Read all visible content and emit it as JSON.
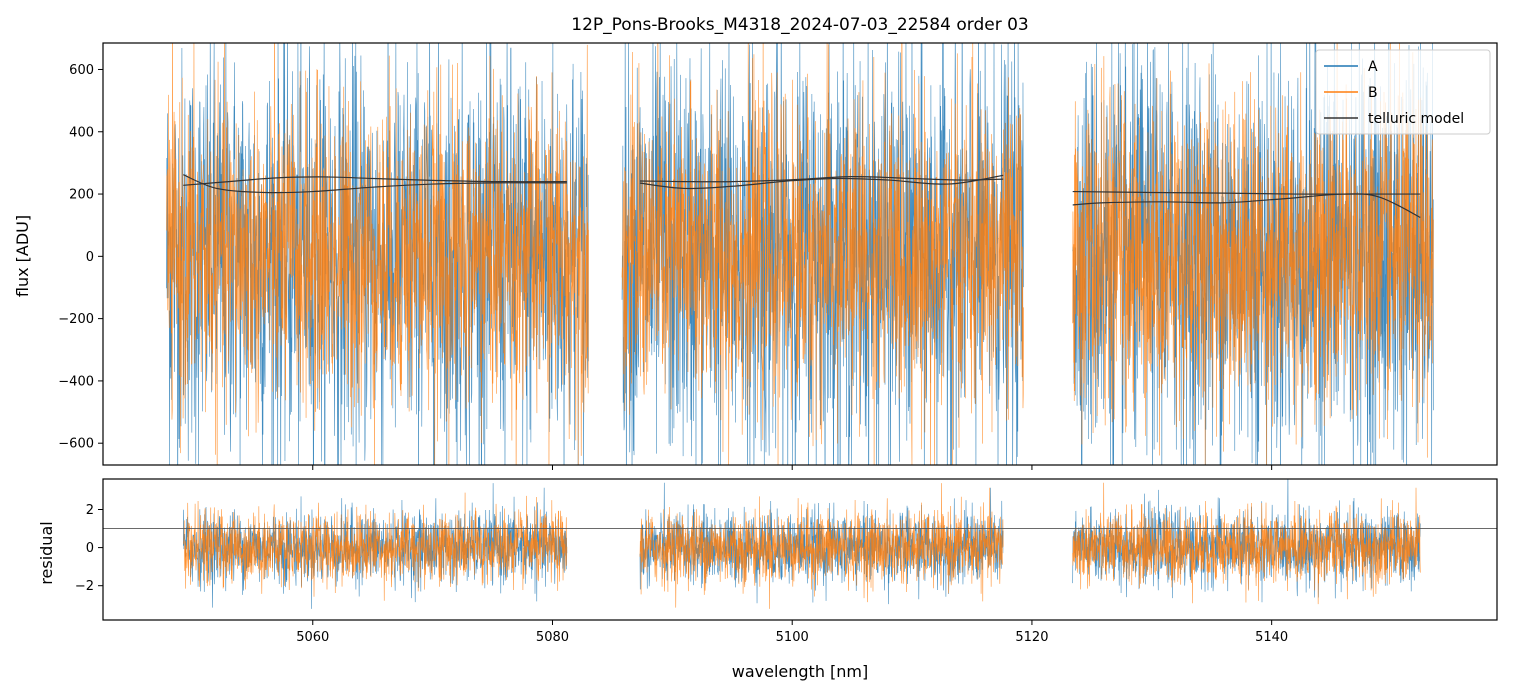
{
  "chart_data": [
    {
      "type": "line",
      "panel": "spectrum",
      "title": "12P_Pons-Brooks_M4318_2024-07-03_22584  order 03",
      "xlabel": "",
      "ylabel": "flux [ADU]",
      "xlim": [
        5042.5,
        5158.8
      ],
      "ylim": [
        -670,
        685
      ],
      "yticks": [
        -600,
        -400,
        -200,
        0,
        200,
        400,
        600
      ],
      "ytick_labels": [
        "−600",
        "−400",
        "−200",
        "0",
        "200",
        "400",
        "600"
      ],
      "xticks": [
        5060,
        5080,
        5100,
        5120,
        5140
      ],
      "legend": {
        "location": "top-right",
        "entries": [
          "A",
          "B",
          "telluric model"
        ]
      },
      "segments": [
        {
          "x_start": 5047.8,
          "x_end": 5083.0,
          "noise_sigma_A": 330,
          "noise_sigma_B": 250
        },
        {
          "x_start": 5085.8,
          "x_end": 5119.3,
          "noise_sigma_A": 330,
          "noise_sigma_B": 250
        },
        {
          "x_start": 5123.4,
          "x_end": 5153.5,
          "noise_sigma_A": 330,
          "noise_sigma_B": 250
        }
      ],
      "series": [
        {
          "name": "A",
          "color": "#1f77b4",
          "description": "noisy spectrum around 0 ADU"
        },
        {
          "name": "B",
          "color": "#ff7f0e",
          "description": "noisy spectrum around 0 ADU"
        },
        {
          "name": "telluric model",
          "color": "#333333",
          "curves": [
            {
              "x": [
                5049.2,
                5053,
                5057,
                5061,
                5065,
                5070,
                5075,
                5081.2
              ],
              "y": [
                228,
                240,
                252,
                255,
                250,
                244,
                240,
                240
              ]
            },
            {
              "x": [
                5049.2,
                5052,
                5056,
                5060,
                5065,
                5070,
                5075,
                5081.2
              ],
              "y": [
                262,
                218,
                205,
                208,
                222,
                232,
                236,
                236
              ]
            },
            {
              "x": [
                5087.3,
                5091,
                5095,
                5100,
                5105,
                5110,
                5114,
                5117.6
              ],
              "y": [
                242,
                240,
                240,
                246,
                256,
                250,
                245,
                248
              ]
            },
            {
              "x": [
                5087.3,
                5091,
                5095,
                5100,
                5104,
                5108,
                5113,
                5117.6
              ],
              "y": [
                235,
                218,
                225,
                243,
                250,
                245,
                232,
                260
              ]
            },
            {
              "x": [
                5123.4,
                5130,
                5136,
                5142,
                5148,
                5152.4
              ],
              "y": [
                208,
                205,
                203,
                200,
                200,
                200
              ]
            },
            {
              "x": [
                5123.4,
                5126,
                5131,
                5136,
                5141,
                5146,
                5149,
                5152.4
              ],
              "y": [
                165,
                172,
                175,
                172,
                185,
                200,
                190,
                125
              ]
            }
          ]
        }
      ]
    },
    {
      "type": "line",
      "panel": "residual",
      "title": "",
      "xlabel": "wavelength [nm]",
      "ylabel": "residual",
      "xlim": [
        5042.5,
        5158.8
      ],
      "ylim": [
        -3.8,
        3.6
      ],
      "yticks": [
        -2,
        0,
        2
      ],
      "ytick_labels": [
        "−2",
        "0",
        "2"
      ],
      "xticks": [
        5060,
        5080,
        5100,
        5120,
        5140
      ],
      "xtick_labels": [
        "5060",
        "5080",
        "5100",
        "5120",
        "5140"
      ],
      "hline": {
        "y": 1.0,
        "color": "#555555"
      },
      "segments": [
        {
          "x_start": 5049.2,
          "x_end": 5081.2,
          "noise_sigma": 0.95
        },
        {
          "x_start": 5087.3,
          "x_end": 5117.6,
          "noise_sigma": 0.95
        },
        {
          "x_start": 5123.4,
          "x_end": 5152.4,
          "noise_sigma": 0.95
        }
      ],
      "series": [
        {
          "name": "A",
          "color": "#1f77b4"
        },
        {
          "name": "B",
          "color": "#ff7f0e"
        }
      ]
    }
  ]
}
